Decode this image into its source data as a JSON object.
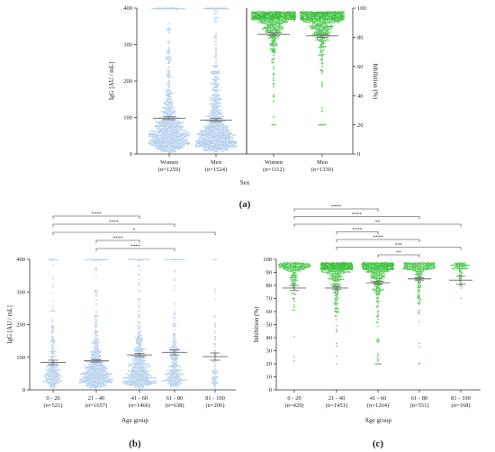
{
  "colors": {
    "blue": "#a9c9ea",
    "green": "#3cc13c",
    "mean": "#666666",
    "axis": "#333333"
  },
  "chart_data": [
    {
      "id": "a",
      "type": "scatter",
      "panel_label": "(a)",
      "xlabel": "Sex",
      "left": {
        "ylabel": "IgG [AU / mL]",
        "ylim": [
          0,
          400
        ],
        "yticks": [
          0,
          100,
          200,
          300,
          400
        ],
        "groups": [
          {
            "label": "Women",
            "n": "(n=1259)",
            "mean": 98,
            "ci": [
              94,
              103
            ]
          },
          {
            "label": "Men",
            "n": "(n=1524)",
            "mean": 93,
            "ci": [
              89,
              97
            ]
          }
        ]
      },
      "right": {
        "ylabel": "Inhibition (%)",
        "ylim": [
          0,
          100
        ],
        "yticks": [
          0,
          20,
          40,
          60,
          80,
          100
        ],
        "groups": [
          {
            "label": "Women",
            "n": "(n=1112)",
            "mean": 82,
            "ci": [
              81,
              83
            ]
          },
          {
            "label": "Men",
            "n": "(n=1330)",
            "mean": 81,
            "ci": [
              80,
              82
            ]
          }
        ]
      }
    },
    {
      "id": "b",
      "type": "scatter",
      "panel_label": "(b)",
      "xlabel": "Age group",
      "ylabel": "IgG [AU / mL]",
      "ylim": [
        0,
        400
      ],
      "yticks": [
        0,
        100,
        200,
        300,
        400
      ],
      "groups": [
        {
          "label": "0 - 20",
          "n": "(n=521)",
          "mean": 84,
          "ci": [
            77,
            91
          ]
        },
        {
          "label": "21 - 40",
          "n": "(n=1657)",
          "mean": 89,
          "ci": [
            85,
            93
          ]
        },
        {
          "label": "41 - 60",
          "n": "(n=1466)",
          "mean": 107,
          "ci": [
            102,
            112
          ]
        },
        {
          "label": "61 - 80",
          "n": "(n=638)",
          "mean": 115,
          "ci": [
            107,
            123
          ]
        },
        {
          "label": "81 - 100",
          "n": "(n=206)",
          "mean": 102,
          "ci": [
            91,
            113
          ]
        }
      ],
      "comparisons": [
        {
          "from": 1,
          "to": 3,
          "label": "****"
        },
        {
          "from": 1,
          "to": 2,
          "label": "****"
        },
        {
          "from": 0,
          "to": 4,
          "label": "*"
        },
        {
          "from": 0,
          "to": 3,
          "label": "****"
        },
        {
          "from": 0,
          "to": 2,
          "label": "****"
        }
      ]
    },
    {
      "id": "c",
      "type": "scatter",
      "panel_label": "(c)",
      "xlabel": "Age group",
      "ylabel": "Inhibition (%)",
      "ylim": [
        0,
        100
      ],
      "yticks": [
        0,
        10,
        20,
        30,
        40,
        50,
        60,
        70,
        80,
        90,
        100
      ],
      "groups": [
        {
          "label": "0 - 20",
          "n": "(n=429)",
          "mean": 78,
          "ci": [
            76,
            80
          ]
        },
        {
          "label": "21 - 40",
          "n": "(n=1451)",
          "mean": 78,
          "ci": [
            77,
            79
          ]
        },
        {
          "label": "41 - 60",
          "n": "(n=1264)",
          "mean": 82,
          "ci": [
            81,
            83
          ]
        },
        {
          "label": "61 - 80",
          "n": "(n=551)",
          "mean": 85,
          "ci": [
            84,
            86
          ]
        },
        {
          "label": "81 - 100",
          "n": "(n=168)",
          "mean": 84,
          "ci": [
            81,
            87
          ]
        }
      ],
      "comparisons": [
        {
          "from": 2,
          "to": 3,
          "label": "**"
        },
        {
          "from": 1,
          "to": 4,
          "label": "***"
        },
        {
          "from": 1,
          "to": 3,
          "label": "****"
        },
        {
          "from": 1,
          "to": 2,
          "label": "****"
        },
        {
          "from": 0,
          "to": 4,
          "label": "**"
        },
        {
          "from": 0,
          "to": 3,
          "label": "****"
        },
        {
          "from": 0,
          "to": 2,
          "label": "****"
        }
      ]
    }
  ]
}
